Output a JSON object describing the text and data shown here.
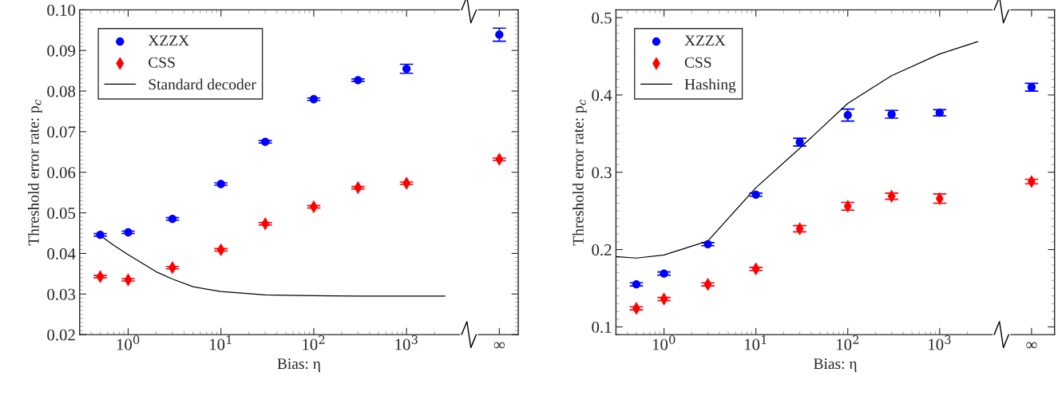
{
  "chart_data": [
    {
      "type": "scatter",
      "xlabel": "Bias: η",
      "ylabel": "Threshold error rate: p$_{c}$",
      "log": "x",
      "xlim": [
        0.3,
        16000
      ],
      "ylim": [
        0.02,
        0.1
      ],
      "xticks": [
        {
          "value": 1,
          "label": "10$^{0}$"
        },
        {
          "value": 10,
          "label": "10$^{1}$"
        },
        {
          "value": 100,
          "label": "10$^{2}$"
        },
        {
          "value": 1000,
          "label": "10$^{3}$"
        },
        {
          "value": 10000,
          "label": "∞"
        }
      ],
      "yticks": [
        {
          "value": 0.02,
          "label": "0.02"
        },
        {
          "value": 0.03,
          "label": "0.03"
        },
        {
          "value": 0.04,
          "label": "0.04"
        },
        {
          "value": 0.05,
          "label": "0.05"
        },
        {
          "value": 0.06,
          "label": "0.06"
        },
        {
          "value": 0.07,
          "label": "0.07"
        },
        {
          "value": 0.08,
          "label": "0.08"
        },
        {
          "value": 0.09,
          "label": "0.09"
        },
        {
          "value": 0.1,
          "label": "0.10"
        }
      ],
      "legend": "top left",
      "grid": false,
      "series": [
        {
          "name": "XZZX",
          "color": "#0000ff",
          "marker": "circle",
          "x": [
            0.5,
            1,
            3,
            10,
            30,
            100,
            300,
            1000,
            10000
          ],
          "values": [
            0.0446,
            0.0452,
            0.0485,
            0.0571,
            0.0675,
            0.078,
            0.0827,
            0.0855,
            0.0939
          ],
          "errors": [
            0.0003,
            0.0003,
            0.0003,
            0.0003,
            0.0003,
            0.0003,
            0.0003,
            0.0011,
            0.0016
          ]
        },
        {
          "name": "CSS",
          "color": "#ff0000",
          "marker": "diamond",
          "x": [
            0.5,
            1,
            3,
            10,
            30,
            100,
            300,
            1000,
            10000
          ],
          "values": [
            0.0343,
            0.0335,
            0.0365,
            0.0409,
            0.0473,
            0.0515,
            0.0562,
            0.0573,
            0.0632
          ],
          "errors": [
            0.0003,
            0.0003,
            0.0003,
            0.0003,
            0.0003,
            0.0003,
            0.0003,
            0.0003,
            0.0003
          ]
        },
        {
          "name": "Standard decoder",
          "type": "line",
          "color": "#000000",
          "marker": "none",
          "x": [
            0.5,
            0.7,
            1,
            2,
            3,
            5,
            10,
            30,
            100,
            300,
            2600
          ],
          "values": [
            0.0444,
            0.042,
            0.0397,
            0.0355,
            0.0337,
            0.0318,
            0.0306,
            0.0298,
            0.0296,
            0.0295,
            0.0295
          ]
        }
      ]
    },
    {
      "type": "scatter",
      "xlabel": "Bias: η",
      "ylabel": "Threshold error rate: p$_{c}$",
      "log": "x",
      "xlim": [
        0.3,
        17800
      ],
      "ylim": [
        0.09,
        0.51
      ],
      "xticks": [
        {
          "value": 1,
          "label": "10$^{0}$"
        },
        {
          "value": 10,
          "label": "10$^{1}$"
        },
        {
          "value": 100,
          "label": "10$^{2}$"
        },
        {
          "value": 1000,
          "label": "10$^{3}$"
        },
        {
          "value": 10000,
          "label": "∞"
        }
      ],
      "yticks": [
        0.1,
        0.2,
        0.3,
        0.4,
        0.5
      ],
      "legend": "top left",
      "grid": false,
      "series": [
        {
          "name": "XZZX",
          "color": "#0000ff",
          "marker": "circle",
          "x": [
            0.5,
            1,
            3,
            10,
            30,
            100,
            300,
            1000,
            10000
          ],
          "values": [
            0.155,
            0.169,
            0.207,
            0.271,
            0.339,
            0.374,
            0.375,
            0.377,
            0.41
          ],
          "errors": [
            0.002,
            0.002,
            0.002,
            0.002,
            0.005,
            0.0077,
            0.005,
            0.004,
            0.005
          ]
        },
        {
          "name": "CSS",
          "color": "#ff0000",
          "marker": "diamond",
          "x": [
            0.5,
            1,
            3,
            10,
            30,
            100,
            300,
            1000,
            10000
          ],
          "values": [
            0.124,
            0.136,
            0.155,
            0.175,
            0.227,
            0.256,
            0.269,
            0.266,
            0.288
          ],
          "errors": [
            0.002,
            0.002,
            0.002,
            0.002,
            0.004,
            0.005,
            0.004,
            0.006,
            0.003
          ]
        },
        {
          "name": "Hashing",
          "type": "line",
          "color": "#000000",
          "marker": "none",
          "x": [
            0.3,
            0.5,
            1,
            3,
            10,
            30,
            100,
            300,
            1000,
            2600
          ],
          "values": [
            0.191,
            0.189,
            0.193,
            0.211,
            0.28,
            0.331,
            0.389,
            0.425,
            0.453,
            0.469
          ]
        }
      ]
    }
  ]
}
